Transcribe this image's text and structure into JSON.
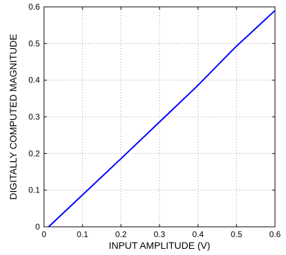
{
  "chart_data": {
    "type": "line",
    "title": "",
    "xlabel": "INPUT AMPLITUDE (V)",
    "ylabel": "DIGITALLY COMPUTED MAGNITUDE",
    "xlim": [
      0,
      0.6
    ],
    "ylim": [
      0,
      0.6
    ],
    "xticks": [
      "0",
      "0.1",
      "0.2",
      "0.3",
      "0.4",
      "0.5",
      "0.6"
    ],
    "yticks": [
      "0",
      "0.1",
      "0.2",
      "0.3",
      "0.4",
      "0.5",
      "0.6"
    ],
    "grid": true,
    "grid_style": "dotted",
    "series": [
      {
        "color": "#0000ff",
        "x": [
          0.012,
          0.1,
          0.2,
          0.3,
          0.4,
          0.47,
          0.5,
          0.53,
          0.6
        ],
        "y": [
          0.0,
          0.087,
          0.186,
          0.286,
          0.386,
          0.461,
          0.493,
          0.522,
          0.59
        ]
      }
    ]
  }
}
